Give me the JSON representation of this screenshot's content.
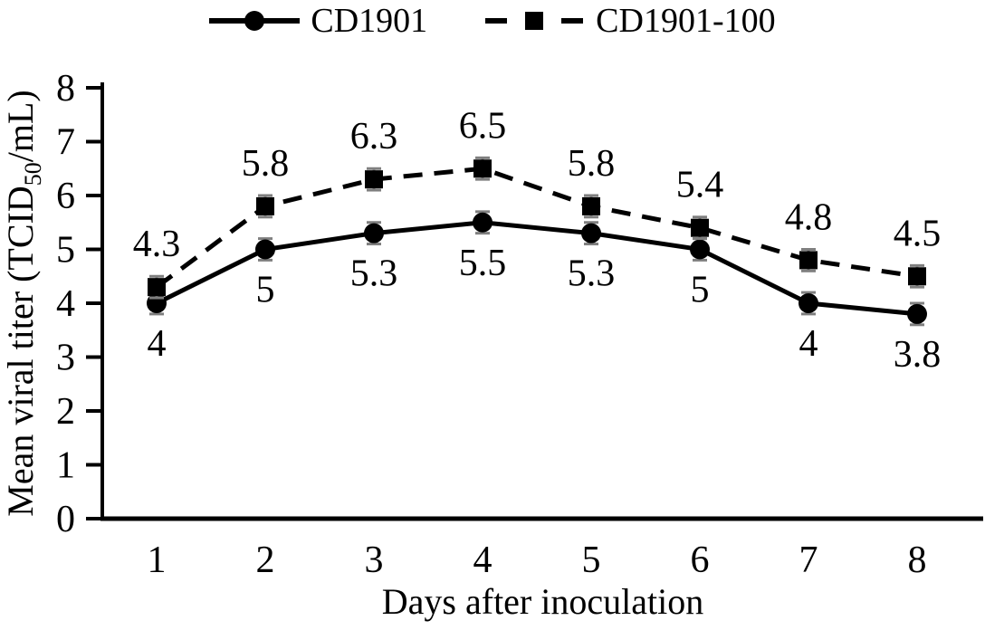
{
  "figure": {
    "background": "#ffffff"
  },
  "legend": {
    "items": [
      {
        "label": "CD1901",
        "marker": "circle",
        "line": "solid"
      },
      {
        "label": "CD1901-100",
        "marker": "square",
        "line": "dashed"
      }
    ]
  },
  "chart_data": {
    "type": "line",
    "x": [
      1,
      2,
      3,
      4,
      5,
      6,
      7,
      8
    ],
    "xtick_labels": [
      "1",
      "2",
      "3",
      "4",
      "5",
      "6",
      "7",
      "8"
    ],
    "yticks": [
      0,
      1,
      2,
      3,
      4,
      5,
      6,
      7,
      8
    ],
    "xlabel": "Days after inoculation",
    "ylabel": "Mean viral titer (TCID50/mL)",
    "ylabel_parts": {
      "pre": "Mean viral titer (TCID",
      "sub": "50",
      "post": "/mL)"
    },
    "ylim": [
      0,
      8
    ],
    "xlim": [
      1,
      8
    ],
    "grid": false,
    "legend_position": "top-center",
    "error_bar_value": 0.2,
    "series": [
      {
        "name": "CD1901",
        "marker": "circle",
        "line_style": "solid",
        "label_position": "below",
        "values": [
          4,
          5,
          5.3,
          5.5,
          5.3,
          5,
          4,
          3.8
        ],
        "point_labels": [
          "4",
          "5",
          "5.3",
          "5.5",
          "5.3",
          "5",
          "4",
          "3.8"
        ]
      },
      {
        "name": "CD1901-100",
        "marker": "square",
        "line_style": "dashed",
        "label_position": "above",
        "values": [
          4.3,
          5.8,
          6.3,
          6.5,
          5.8,
          5.4,
          4.8,
          4.5
        ],
        "point_labels": [
          "4.3",
          "5.8",
          "6.3",
          "6.5",
          "5.8",
          "5.4",
          "4.8",
          "4.5"
        ]
      }
    ],
    "colors": {
      "series": "#000000",
      "error_bar": "#7f7f7f",
      "background": "#ffffff"
    }
  }
}
